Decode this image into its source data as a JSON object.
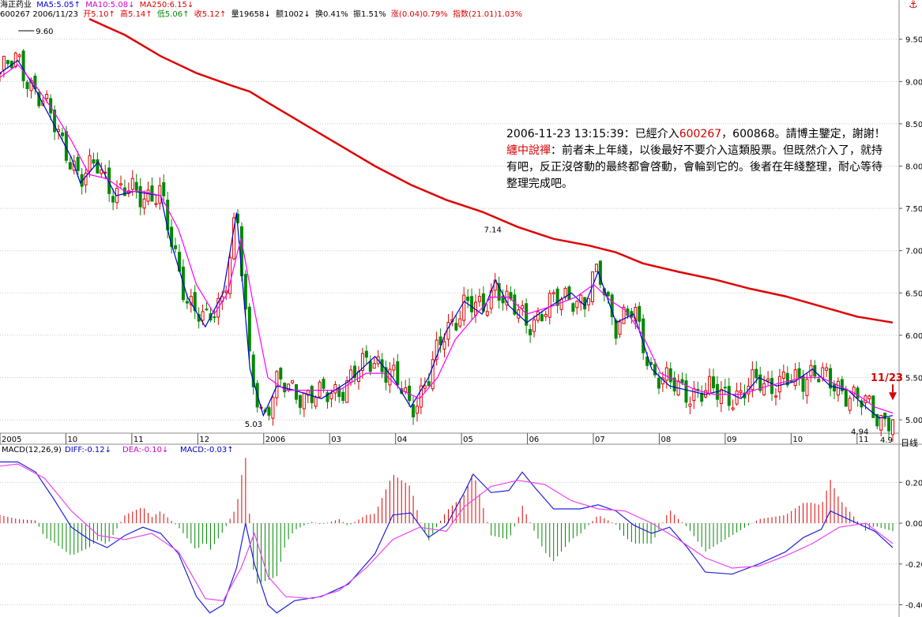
{
  "header": {
    "stock_name": "海正药业",
    "ma5": "MA5:5.05",
    "ma5_arrow": "↑",
    "ma10": "MA10:5.08",
    "ma10_arrow": "↓",
    "ma250": "MA250:6.15",
    "ma250_arrow": "↓",
    "code_date": "600267 2006/11/23",
    "open": "开5.10",
    "high": "高5.14",
    "low": "低5.06",
    "close": "收5.12",
    "volume": "量19658",
    "amount": "额1002",
    "turnover": "换0.41%",
    "amplitude": "振1.51%",
    "change": "涨(0.04)0.79%",
    "index": "指数(21.01)1.03%",
    "up": "↑",
    "down": "↓"
  },
  "comment": {
    "line1_prefix": "2006-11-23 13:15:39：已經介入",
    "line1_code": "600267",
    "line1_suffix": "，600868。請博主鑒定，謝謝！",
    "reply_label": "纏中說禪",
    "reply_text": "：前者未上年綫，以後最好不要介入這類股票。但既然介入了，就持有吧，反正沒啓動的最終都會啓動，會輪到它的。後者在年綫整理，耐心等待整理完成吧。"
  },
  "macd_header": {
    "name": "MACD(12,26,9)",
    "diff": "DIFF:-0.12",
    "dea": "DEA:-0.10",
    "macd": "MACD:-0.03",
    "arrow_up": "↑",
    "arrow_down": "↓"
  },
  "ui": {
    "period_tab": "日线",
    "anchor_icon": "⚓"
  },
  "colors": {
    "up": "#e00000",
    "down": "#008800",
    "ma5": "#0000cc",
    "ma10": "#ff00ff",
    "ma250": "#e00000",
    "grid": "#c8c8c8"
  },
  "chart_data": [
    {
      "type": "candlestick",
      "title": "海正药业 600267",
      "y_ticks": [
        "9.50",
        "9.00",
        "8.50",
        "8.00",
        "7.50",
        "7.00",
        "6.50",
        "6.00",
        "5.50",
        "5.00"
      ],
      "ylim": [
        4.87,
        9.74
      ],
      "x_ticks": [
        "2005",
        "10",
        "11",
        "12",
        "2006",
        "03",
        "04",
        "05",
        "06",
        "07",
        "08",
        "09",
        "10",
        "11"
      ],
      "annotations": [
        {
          "text": "9.60",
          "value": 9.6,
          "position": 0.033
        },
        {
          "text": "5.03",
          "value": 5.03,
          "position": 0.283
        },
        {
          "text": "7.14",
          "value": 7.14,
          "position": 0.551
        },
        {
          "text": "4.94",
          "value": 4.94,
          "position": 0.985
        },
        {
          "text": "4.9",
          "value": 4.9,
          "position": 1.0
        },
        {
          "text": "11/23",
          "value": 5.12,
          "position": 1.0
        }
      ],
      "series": [
        {
          "name": "MA5",
          "points": [
            [
              0,
              9.1
            ],
            [
              0.02,
              9.25
            ],
            [
              0.04,
              8.9
            ],
            [
              0.06,
              8.5
            ],
            [
              0.08,
              8.1
            ],
            [
              0.09,
              7.8
            ],
            [
              0.11,
              8.05
            ],
            [
              0.13,
              7.65
            ],
            [
              0.15,
              7.7
            ],
            [
              0.18,
              7.65
            ],
            [
              0.19,
              7.15
            ],
            [
              0.21,
              6.45
            ],
            [
              0.23,
              6.1
            ],
            [
              0.25,
              6.5
            ],
            [
              0.265,
              7.45
            ],
            [
              0.28,
              5.6
            ],
            [
              0.295,
              5.05
            ],
            [
              0.31,
              5.4
            ],
            [
              0.33,
              5.35
            ],
            [
              0.36,
              5.25
            ],
            [
              0.39,
              5.45
            ],
            [
              0.42,
              5.75
            ],
            [
              0.44,
              5.5
            ],
            [
              0.46,
              5.15
            ],
            [
              0.48,
              5.5
            ],
            [
              0.5,
              6.05
            ],
            [
              0.52,
              6.4
            ],
            [
              0.54,
              6.25
            ],
            [
              0.555,
              6.65
            ],
            [
              0.57,
              6.35
            ],
            [
              0.59,
              6.15
            ],
            [
              0.61,
              6.3
            ],
            [
              0.64,
              6.5
            ],
            [
              0.655,
              6.35
            ],
            [
              0.67,
              6.75
            ],
            [
              0.69,
              6.15
            ],
            [
              0.71,
              6.25
            ],
            [
              0.73,
              5.6
            ],
            [
              0.75,
              5.4
            ],
            [
              0.77,
              5.35
            ],
            [
              0.79,
              5.3
            ],
            [
              0.81,
              5.35
            ],
            [
              0.83,
              5.25
            ],
            [
              0.85,
              5.5
            ],
            [
              0.87,
              5.4
            ],
            [
              0.89,
              5.45
            ],
            [
              0.91,
              5.6
            ],
            [
              0.93,
              5.4
            ],
            [
              0.95,
              5.35
            ],
            [
              0.97,
              5.15
            ],
            [
              0.985,
              5.02
            ],
            [
              1.0,
              5.05
            ]
          ]
        },
        {
          "name": "MA10",
          "points": [
            [
              0,
              9.05
            ],
            [
              0.02,
              9.2
            ],
            [
              0.04,
              8.95
            ],
            [
              0.06,
              8.65
            ],
            [
              0.08,
              8.3
            ],
            [
              0.1,
              7.9
            ],
            [
              0.12,
              7.85
            ],
            [
              0.14,
              7.7
            ],
            [
              0.16,
              7.7
            ],
            [
              0.18,
              7.65
            ],
            [
              0.2,
              7.25
            ],
            [
              0.22,
              6.6
            ],
            [
              0.24,
              6.25
            ],
            [
              0.255,
              6.5
            ],
            [
              0.27,
              7.15
            ],
            [
              0.285,
              6.3
            ],
            [
              0.3,
              5.5
            ],
            [
              0.32,
              5.35
            ],
            [
              0.35,
              5.35
            ],
            [
              0.38,
              5.35
            ],
            [
              0.41,
              5.55
            ],
            [
              0.43,
              5.55
            ],
            [
              0.45,
              5.35
            ],
            [
              0.47,
              5.25
            ],
            [
              0.49,
              5.5
            ],
            [
              0.51,
              5.95
            ],
            [
              0.53,
              6.2
            ],
            [
              0.55,
              6.45
            ],
            [
              0.57,
              6.45
            ],
            [
              0.59,
              6.25
            ],
            [
              0.62,
              6.35
            ],
            [
              0.645,
              6.45
            ],
            [
              0.665,
              6.6
            ],
            [
              0.685,
              6.4
            ],
            [
              0.7,
              6.3
            ],
            [
              0.72,
              6.0
            ],
            [
              0.74,
              5.55
            ],
            [
              0.76,
              5.45
            ],
            [
              0.78,
              5.35
            ],
            [
              0.8,
              5.3
            ],
            [
              0.83,
              5.3
            ],
            [
              0.86,
              5.4
            ],
            [
              0.88,
              5.45
            ],
            [
              0.9,
              5.5
            ],
            [
              0.92,
              5.5
            ],
            [
              0.94,
              5.4
            ],
            [
              0.96,
              5.3
            ],
            [
              0.98,
              5.15
            ],
            [
              1.0,
              5.08
            ]
          ]
        },
        {
          "name": "MA250",
          "points": [
            [
              0.1,
              9.74
            ],
            [
              0.14,
              9.55
            ],
            [
              0.18,
              9.3
            ],
            [
              0.22,
              9.1
            ],
            [
              0.26,
              8.95
            ],
            [
              0.28,
              8.88
            ],
            [
              0.3,
              8.75
            ],
            [
              0.34,
              8.5
            ],
            [
              0.38,
              8.25
            ],
            [
              0.42,
              8.0
            ],
            [
              0.46,
              7.78
            ],
            [
              0.5,
              7.6
            ],
            [
              0.54,
              7.46
            ],
            [
              0.58,
              7.28
            ],
            [
              0.62,
              7.14
            ],
            [
              0.66,
              7.06
            ],
            [
              0.69,
              6.98
            ],
            [
              0.72,
              6.85
            ],
            [
              0.76,
              6.75
            ],
            [
              0.8,
              6.66
            ],
            [
              0.84,
              6.55
            ],
            [
              0.88,
              6.46
            ],
            [
              0.92,
              6.34
            ],
            [
              0.96,
              6.22
            ],
            [
              1.0,
              6.15
            ]
          ]
        }
      ]
    },
    {
      "type": "macd",
      "title": "MACD(12,26,9)",
      "y_ticks": [
        "0.20",
        "0.00",
        "-0.20",
        "-0.40"
      ],
      "ylim": [
        -0.46,
        0.36
      ],
      "series": [
        {
          "name": "DIFF",
          "points": [
            [
              0,
              0.3
            ],
            [
              0.02,
              0.3
            ],
            [
              0.04,
              0.25
            ],
            [
              0.06,
              0.12
            ],
            [
              0.08,
              -0.02
            ],
            [
              0.1,
              -0.08
            ],
            [
              0.12,
              -0.12
            ],
            [
              0.14,
              -0.06
            ],
            [
              0.16,
              -0.02
            ],
            [
              0.18,
              -0.05
            ],
            [
              0.2,
              -0.15
            ],
            [
              0.22,
              -0.36
            ],
            [
              0.235,
              -0.44
            ],
            [
              0.25,
              -0.4
            ],
            [
              0.265,
              -0.22
            ],
            [
              0.275,
              0.0
            ],
            [
              0.285,
              -0.2
            ],
            [
              0.3,
              -0.4
            ],
            [
              0.31,
              -0.44
            ],
            [
              0.33,
              -0.38
            ],
            [
              0.36,
              -0.36
            ],
            [
              0.39,
              -0.3
            ],
            [
              0.42,
              -0.15
            ],
            [
              0.44,
              0.04
            ],
            [
              0.46,
              0.05
            ],
            [
              0.48,
              -0.07
            ],
            [
              0.5,
              -0.01
            ],
            [
              0.52,
              0.15
            ],
            [
              0.53,
              0.24
            ],
            [
              0.55,
              0.15
            ],
            [
              0.57,
              0.16
            ],
            [
              0.585,
              0.25
            ],
            [
              0.6,
              0.17
            ],
            [
              0.62,
              0.07
            ],
            [
              0.65,
              0.07
            ],
            [
              0.67,
              0.09
            ],
            [
              0.69,
              0.06
            ],
            [
              0.71,
              -0.01
            ],
            [
              0.73,
              -0.05
            ],
            [
              0.75,
              -0.02
            ],
            [
              0.77,
              -0.12
            ],
            [
              0.79,
              -0.24
            ],
            [
              0.82,
              -0.25
            ],
            [
              0.85,
              -0.2
            ],
            [
              0.88,
              -0.14
            ],
            [
              0.9,
              -0.07
            ],
            [
              0.92,
              -0.03
            ],
            [
              0.93,
              0.06
            ],
            [
              0.95,
              0.02
            ],
            [
              0.98,
              -0.04
            ],
            [
              1.0,
              -0.12
            ]
          ]
        },
        {
          "name": "DEA",
          "points": [
            [
              0,
              0.28
            ],
            [
              0.02,
              0.29
            ],
            [
              0.05,
              0.22
            ],
            [
              0.08,
              0.06
            ],
            [
              0.11,
              -0.06
            ],
            [
              0.14,
              -0.08
            ],
            [
              0.17,
              -0.05
            ],
            [
              0.2,
              -0.14
            ],
            [
              0.23,
              -0.37
            ],
            [
              0.25,
              -0.38
            ],
            [
              0.27,
              -0.22
            ],
            [
              0.285,
              -0.05
            ],
            [
              0.3,
              -0.26
            ],
            [
              0.32,
              -0.36
            ],
            [
              0.35,
              -0.37
            ],
            [
              0.38,
              -0.33
            ],
            [
              0.41,
              -0.22
            ],
            [
              0.44,
              -0.08
            ],
            [
              0.47,
              -0.02
            ],
            [
              0.5,
              -0.04
            ],
            [
              0.52,
              0.08
            ],
            [
              0.55,
              0.18
            ],
            [
              0.58,
              0.21
            ],
            [
              0.61,
              0.19
            ],
            [
              0.64,
              0.11
            ],
            [
              0.67,
              0.07
            ],
            [
              0.7,
              0.06
            ],
            [
              0.73,
              0.0
            ],
            [
              0.76,
              -0.08
            ],
            [
              0.79,
              -0.17
            ],
            [
              0.82,
              -0.22
            ],
            [
              0.85,
              -0.21
            ],
            [
              0.88,
              -0.16
            ],
            [
              0.91,
              -0.1
            ],
            [
              0.94,
              -0.02
            ],
            [
              0.97,
              0.0
            ],
            [
              1.0,
              -0.1
            ]
          ]
        }
      ]
    }
  ]
}
